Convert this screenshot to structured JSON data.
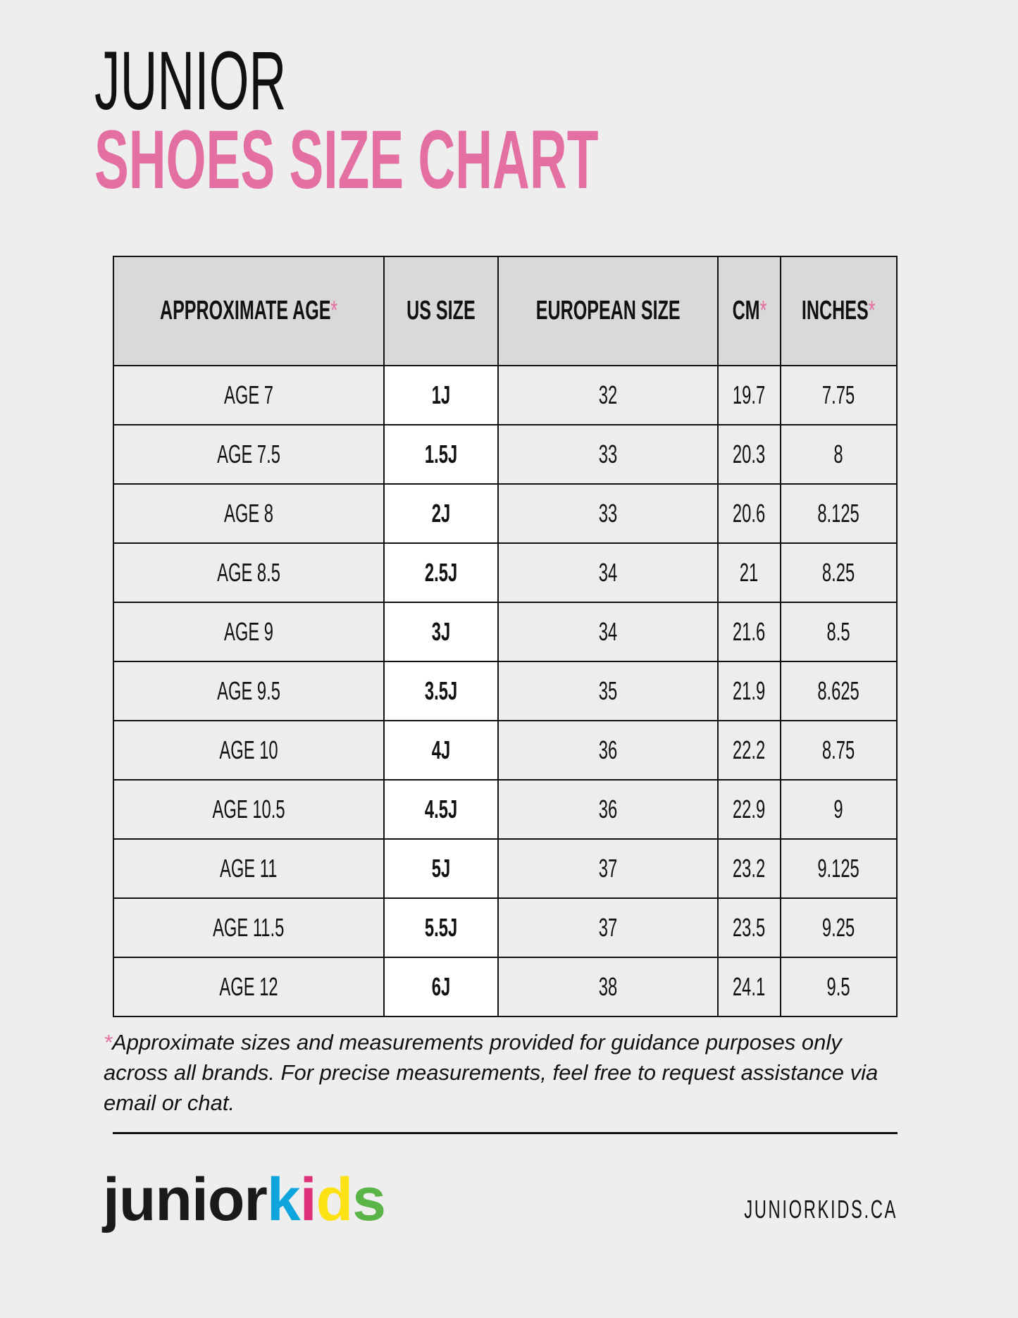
{
  "title": {
    "line1": "JUNIOR",
    "line2": "SHOES SIZE CHART"
  },
  "colors": {
    "accent": "#e46fa2",
    "header_bg": "#d9d9d9",
    "cell_bg": "#ededed",
    "us_col_bg": "#ffffff"
  },
  "table": {
    "headers": [
      {
        "label": "APPROXIMATE AGE",
        "asterisk": "*"
      },
      {
        "label": "US SIZE",
        "asterisk": ""
      },
      {
        "label": "EUROPEAN SIZE",
        "asterisk": ""
      },
      {
        "label": "CM",
        "asterisk": "*"
      },
      {
        "label": "INCHES",
        "asterisk": "*"
      }
    ],
    "rows": [
      [
        "AGE 7",
        "1J",
        "32",
        "19.7",
        "7.75"
      ],
      [
        "AGE 7.5",
        "1.5J",
        "33",
        "20.3",
        "8"
      ],
      [
        "AGE 8",
        "2J",
        "33",
        "20.6",
        "8.125"
      ],
      [
        "AGE 8.5",
        "2.5J",
        "34",
        "21",
        "8.25"
      ],
      [
        "AGE 9",
        "3J",
        "34",
        "21.6",
        "8.5"
      ],
      [
        "AGE 9.5",
        "3.5J",
        "35",
        "21.9",
        "8.625"
      ],
      [
        "AGE 10",
        "4J",
        "36",
        "22.2",
        "8.75"
      ],
      [
        "AGE 10.5",
        "4.5J",
        "36",
        "22.9",
        "9"
      ],
      [
        "AGE 11",
        "5J",
        "37",
        "23.2",
        "9.125"
      ],
      [
        "AGE 11.5",
        "5.5J",
        "37",
        "23.5",
        "9.25"
      ],
      [
        "AGE 12",
        "6J",
        "38",
        "24.1",
        "9.5"
      ]
    ]
  },
  "footnote": {
    "asterisk": "*",
    "text": "Approximate sizes and measurements provided for guidance purposes only across all brands. For precise measurements, feel free to request assistance via email or chat."
  },
  "footer": {
    "logo": {
      "part1": "junior",
      "part2": [
        "k",
        "i",
        "d",
        "s"
      ],
      "part2_colors": [
        "#0ea5dc",
        "#e0307a",
        "#fde213",
        "#5bb446"
      ]
    },
    "website": "JUNIORKIDS.CA"
  }
}
